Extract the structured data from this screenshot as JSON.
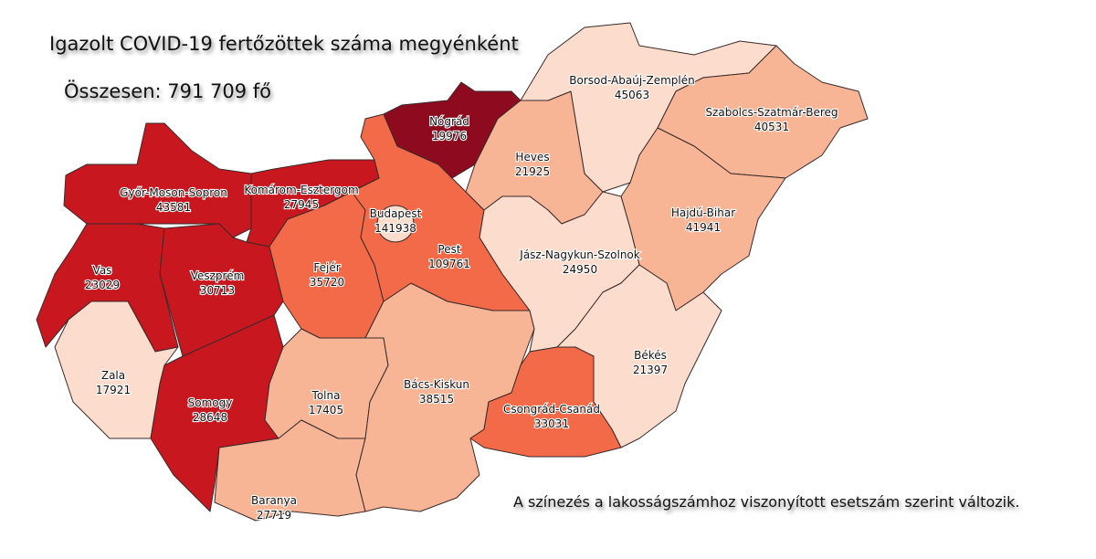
{
  "title": "Igazolt COVID-19 fertőzöttek száma megyénként",
  "total": "Összesen: 791 709 fő",
  "note": "A színezés a lakosságszámhoz viszonyított esetszám szerint változik.",
  "colors": {
    "level5": "#8e0b1f",
    "level4": "#c8171e",
    "level3": "#f26a48",
    "level2": "#f7b596",
    "level1": "#fcdccc"
  },
  "counties": [
    {
      "name": "Győr-Moson-Sopron",
      "cases": "43581",
      "level": "level4"
    },
    {
      "name": "Komárom-Esztergom",
      "cases": "27945",
      "level": "level4"
    },
    {
      "name": "Vas",
      "cases": "23029",
      "level": "level4"
    },
    {
      "name": "Veszprém",
      "cases": "30713",
      "level": "level4"
    },
    {
      "name": "Zala",
      "cases": "17921",
      "level": "level1"
    },
    {
      "name": "Somogy",
      "cases": "28648",
      "level": "level4"
    },
    {
      "name": "Fejér",
      "cases": "35720",
      "level": "level3"
    },
    {
      "name": "Tolna",
      "cases": "17405",
      "level": "level2"
    },
    {
      "name": "Baranya",
      "cases": "27719",
      "level": "level2"
    },
    {
      "name": "Bács-Kiskun",
      "cases": "38515",
      "level": "level2"
    },
    {
      "name": "Pest",
      "cases": "109761",
      "level": "level3"
    },
    {
      "name": "Budapest",
      "cases": "141938",
      "level": "level1"
    },
    {
      "name": "Nógrád",
      "cases": "19976",
      "level": "level5"
    },
    {
      "name": "Heves",
      "cases": "21925",
      "level": "level2"
    },
    {
      "name": "Borsod-Abaúj-Zemplén",
      "cases": "45063",
      "level": "level1"
    },
    {
      "name": "Szabolcs-Szatmár-Bereg",
      "cases": "40531",
      "level": "level2"
    },
    {
      "name": "Hajdú-Bihar",
      "cases": "41941",
      "level": "level2"
    },
    {
      "name": "Jász-Nagykun-Szolnok",
      "cases": "24950",
      "level": "level1"
    },
    {
      "name": "Békés",
      "cases": "21397",
      "level": "level1"
    },
    {
      "name": "Csongrád-Csanád",
      "cases": "33031",
      "level": "level3"
    }
  ]
}
